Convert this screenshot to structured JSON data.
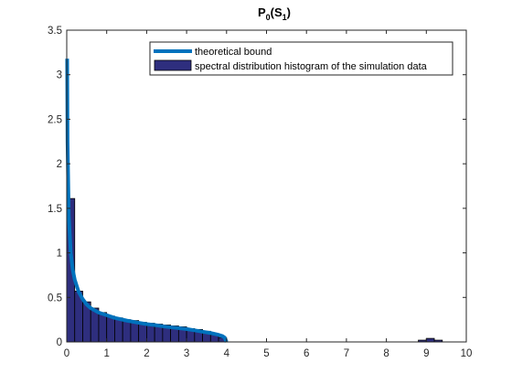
{
  "chart_data": {
    "type": "bar",
    "title": {
      "main": "P",
      "sub1": "0",
      "mid": "(S",
      "sub2": "1",
      "end": ")"
    },
    "xlabel": "",
    "ylabel": "",
    "xlim": [
      0,
      10
    ],
    "ylim": [
      0,
      3.5
    ],
    "xticks": [
      "0",
      "1",
      "2",
      "3",
      "4",
      "5",
      "6",
      "7",
      "8",
      "9",
      "10"
    ],
    "yticks": [
      "0",
      "0.5",
      "1",
      "1.5",
      "2",
      "2.5",
      "3",
      "3.5"
    ],
    "grid": false,
    "legend_position": "top-right",
    "series": [
      {
        "name": "theoretical bound",
        "kind": "line",
        "color": "#0072BD",
        "x": [
          0.01,
          0.02,
          0.05,
          0.1,
          0.15,
          0.2,
          0.3,
          0.4,
          0.5,
          0.6,
          0.8,
          1.0,
          1.2,
          1.5,
          1.8,
          2.0,
          2.2,
          2.5,
          2.8,
          3.0,
          3.2,
          3.4,
          3.6,
          3.8,
          3.9,
          3.95,
          4.0
        ],
        "y": [
          3.18,
          2.25,
          1.42,
          1.0,
          0.81,
          0.7,
          0.56,
          0.48,
          0.42,
          0.38,
          0.33,
          0.3,
          0.27,
          0.24,
          0.215,
          0.2,
          0.19,
          0.17,
          0.155,
          0.145,
          0.13,
          0.115,
          0.1,
          0.08,
          0.065,
          0.05,
          0.0
        ]
      },
      {
        "name": "spectral distribution histogram of the simulation data",
        "kind": "histogram",
        "color": "#2E2E7E",
        "bin_width": 0.2,
        "bin_starts": [
          0.0,
          0.2,
          0.4,
          0.6,
          0.8,
          1.0,
          1.2,
          1.4,
          1.6,
          1.8,
          2.0,
          2.2,
          2.4,
          2.6,
          2.8,
          3.0,
          3.2,
          3.4,
          3.6,
          3.8,
          8.8,
          9.0,
          9.2
        ],
        "values": [
          1.61,
          0.57,
          0.45,
          0.38,
          0.33,
          0.29,
          0.27,
          0.25,
          0.24,
          0.22,
          0.21,
          0.2,
          0.19,
          0.18,
          0.17,
          0.15,
          0.14,
          0.12,
          0.08,
          0.05,
          0.02,
          0.04,
          0.02
        ]
      }
    ]
  }
}
